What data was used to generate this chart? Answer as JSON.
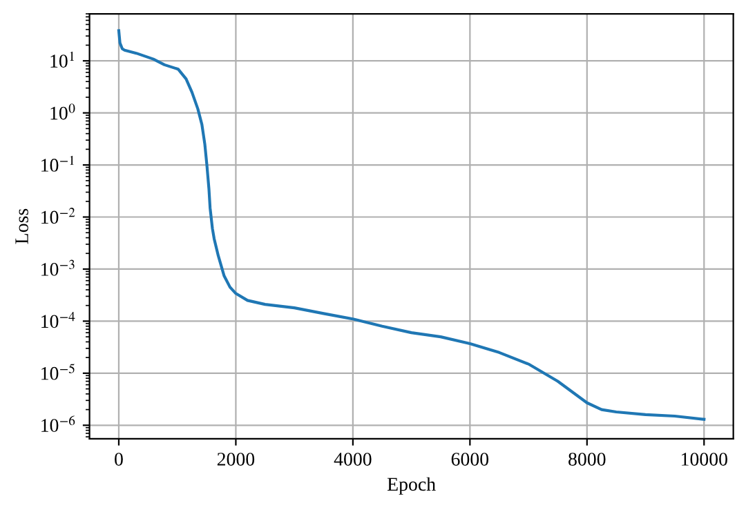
{
  "chart_data": {
    "type": "line",
    "xlabel": "Epoch",
    "ylabel": "Loss",
    "log": "y",
    "grid": true,
    "line_style": "solid",
    "marker": "none",
    "xlim": [
      -500,
      10500
    ],
    "xticks": [
      0,
      2000,
      4000,
      6000,
      8000,
      10000
    ],
    "ylim": [
      5.5e-07,
      80
    ],
    "yticks": [
      {
        "value": 1e-06,
        "label": "10$^{−6}$"
      },
      {
        "value": 1e-05,
        "label": "10$^{−5}$"
      },
      {
        "value": 0.0001,
        "label": "10$^{−4}$"
      },
      {
        "value": 0.001,
        "label": "10$^{−3}$"
      },
      {
        "value": 0.01,
        "label": "10$^{−2}$"
      },
      {
        "value": 0.1,
        "label": "10$^{−1}$"
      },
      {
        "value": 1,
        "label": "10$^{0}$"
      },
      {
        "value": 10,
        "label": "10$^{1}$"
      }
    ],
    "series": [
      {
        "color": "#1f77b4",
        "x": [
          0,
          20,
          60,
          100,
          300,
          590,
          780,
          1016,
          1150,
          1250,
          1350,
          1420,
          1470,
          1505,
          1540,
          1560,
          1600,
          1630,
          1700,
          1800,
          1900,
          2000,
          2200,
          2500,
          3000,
          3500,
          4000,
          4500,
          5000,
          5500,
          6000,
          6500,
          7000,
          7500,
          8000,
          8250,
          8500,
          9000,
          9500,
          10000
        ],
        "values": [
          38,
          22,
          17,
          16,
          14,
          10.8,
          8.4,
          6.9,
          4.5,
          2.5,
          1.2,
          0.6,
          0.25,
          0.1,
          0.035,
          0.015,
          0.006,
          0.0038,
          0.0018,
          0.00074,
          0.00045,
          0.00034,
          0.00025,
          0.00021,
          0.00018,
          0.00014,
          0.00011,
          8e-05,
          6e-05,
          5e-05,
          3.7e-05,
          2.5e-05,
          1.5e-05,
          7e-06,
          2.7e-06,
          2e-06,
          1.8e-06,
          1.6e-06,
          1.5e-06,
          1.3e-06
        ]
      }
    ]
  }
}
